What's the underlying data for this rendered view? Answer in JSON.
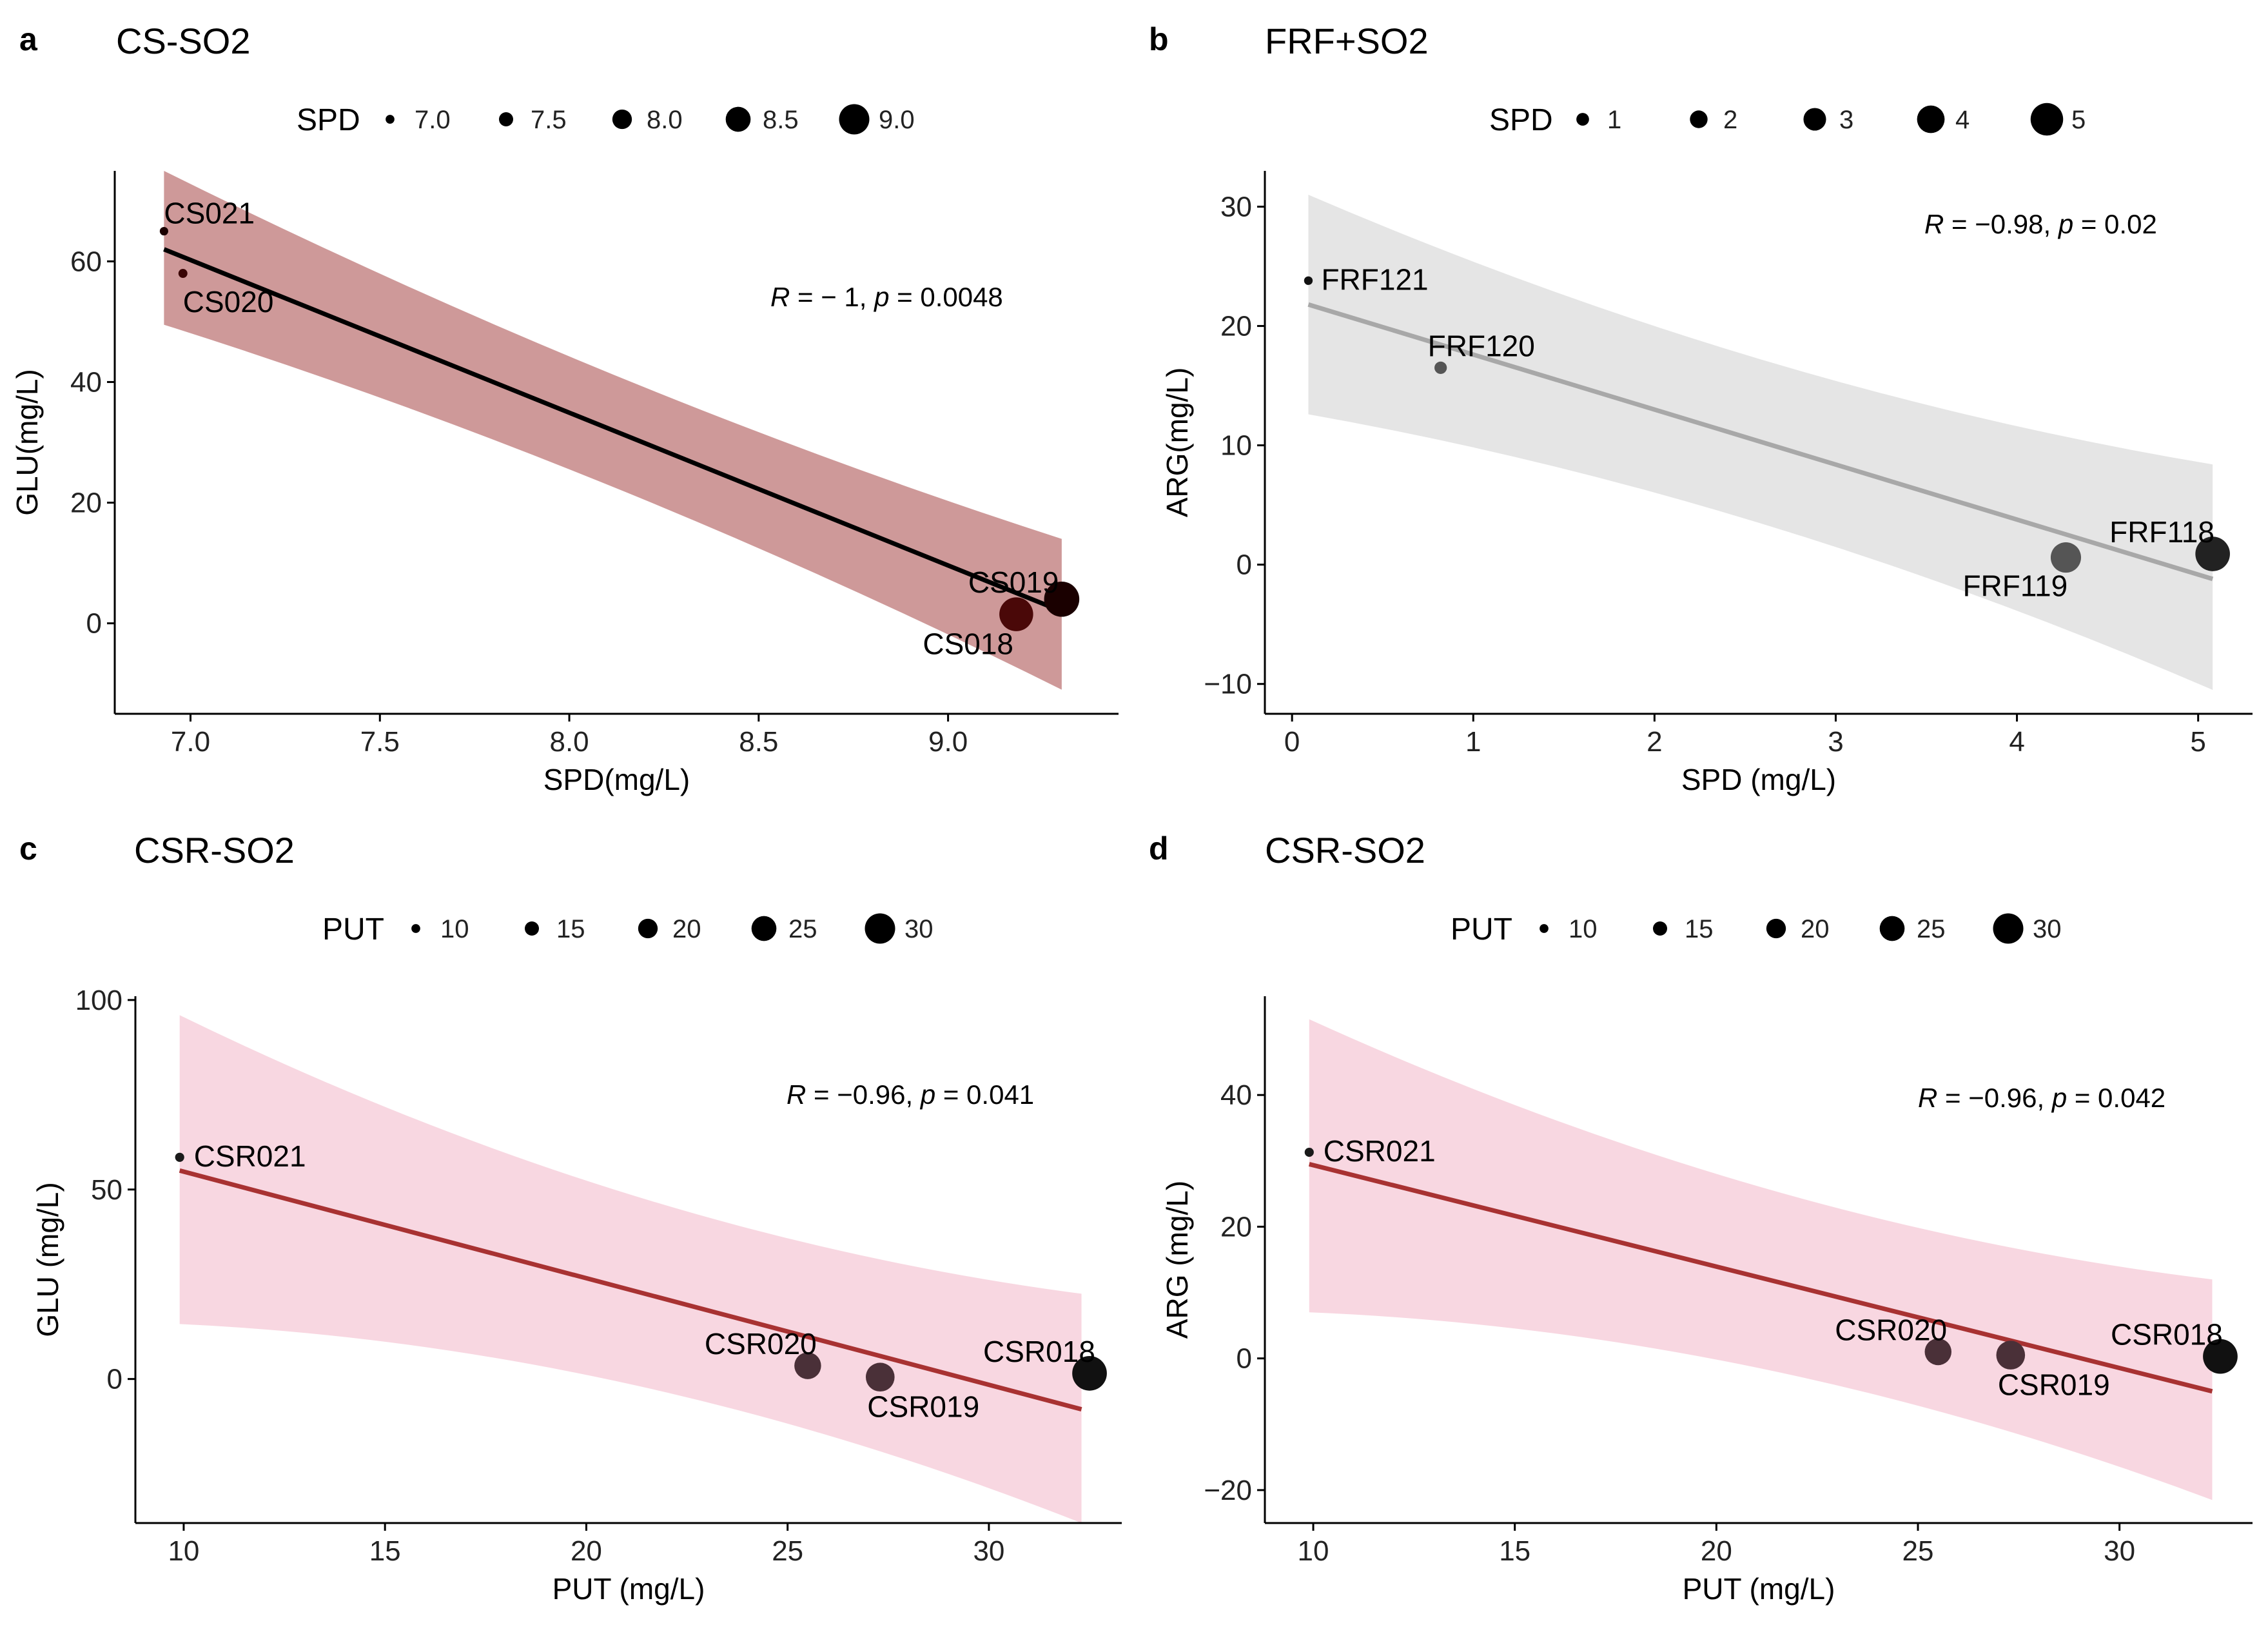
{
  "chart_data": [
    {
      "type": "scatter",
      "letter": "a",
      "title": "CS-SO2",
      "xlabel": "SPD(mg/L)",
      "ylabel": "GLU(mg/L)",
      "xlim": [
        6.8,
        9.45
      ],
      "ylim": [
        -15,
        75
      ],
      "xticks": [
        7.0,
        7.5,
        8.0,
        8.5,
        9.0
      ],
      "xtick_labels": [
        "7.0",
        "7.5",
        "8.0",
        "8.5",
        "9.0"
      ],
      "yticks": [
        0,
        20,
        40,
        60
      ],
      "ytick_labels": [
        "0",
        "20",
        "40",
        "60"
      ],
      "size_legend": {
        "title": "SPD",
        "values": [
          7.0,
          7.5,
          8.0,
          8.5,
          9.0
        ],
        "labels": [
          "7.0",
          "7.5",
          "8.0",
          "8.5",
          "9.0"
        ],
        "range": [
          6.9,
          9.3
        ]
      },
      "points": [
        {
          "label": "CS021",
          "x": 6.93,
          "y": 65,
          "size": 6.93,
          "color": "#1a0000"
        },
        {
          "label": "CS020",
          "x": 6.98,
          "y": 58,
          "size": 6.98,
          "color": "#3a0505"
        },
        {
          "label": "CS019",
          "x": 9.3,
          "y": 4,
          "size": 9.3,
          "color": "#1a0000"
        },
        {
          "label": "CS018",
          "x": 9.18,
          "y": 1.5,
          "size": 9.18,
          "color": "#4a0808"
        }
      ],
      "fit": {
        "x": [
          6.93,
          9.3
        ],
        "y": [
          62,
          2
        ],
        "band_upper": [
          75,
          14
        ],
        "band_lower": [
          49.5,
          -11
        ]
      },
      "line_color": "#000000",
      "band_color": "#b05a5a",
      "band_opacity": 0.62,
      "stat_R": "R",
      "stat_R_val": " = − 1, ",
      "stat_p": "p",
      "stat_p_val": " = 0.0048"
    },
    {
      "type": "scatter",
      "letter": "b",
      "title": "FRF+SO2",
      "xlabel": "SPD (mg/L)",
      "ylabel": "ARG(mg/L)",
      "xlim": [
        -0.15,
        5.3
      ],
      "ylim": [
        -12.5,
        33
      ],
      "xticks": [
        0,
        1,
        2,
        3,
        4,
        5
      ],
      "xtick_labels": [
        "0",
        "1",
        "2",
        "3",
        "4",
        "5"
      ],
      "yticks": [
        -10,
        0,
        10,
        20,
        30
      ],
      "ytick_labels": [
        "−10",
        "0",
        "10",
        "20",
        "30"
      ],
      "size_legend": {
        "title": "SPD",
        "values": [
          1,
          2,
          3,
          4,
          5
        ],
        "labels": [
          "1",
          "2",
          "3",
          "4",
          "5"
        ],
        "range": [
          0,
          5.2
        ]
      },
      "points": [
        {
          "label": "FRF121",
          "x": 0.09,
          "y": 23.8,
          "size": 0.09,
          "color": "#111111"
        },
        {
          "label": "FRF120",
          "x": 0.82,
          "y": 16.5,
          "size": 0.82,
          "color": "#555555"
        },
        {
          "label": "FRF119",
          "x": 4.27,
          "y": 0.6,
          "size": 4.27,
          "color": "#555555"
        },
        {
          "label": "FRF118",
          "x": 5.08,
          "y": 0.9,
          "size": 5.08,
          "color": "#222222"
        }
      ],
      "fit": {
        "x": [
          0.09,
          5.08
        ],
        "y": [
          21.8,
          -1.2
        ],
        "band_upper": [
          31,
          8.4
        ],
        "band_lower": [
          12.6,
          -10.5
        ]
      },
      "line_color": "#a8a8a8",
      "band_color": "#d0d0d0",
      "band_opacity": 0.55,
      "stat_R": "R",
      "stat_R_val": " = −0.98, ",
      "stat_p": "p",
      "stat_p_val": " = 0.02"
    },
    {
      "type": "scatter",
      "letter": "c",
      "title": "CSR-SO2",
      "xlabel": "PUT (mg/L)",
      "ylabel": "GLU (mg/L)",
      "xlim": [
        8.8,
        33.3
      ],
      "ylim": [
        -38,
        101
      ],
      "xticks": [
        10,
        15,
        20,
        25,
        30
      ],
      "xtick_labels": [
        "10",
        "15",
        "20",
        "25",
        "30"
      ],
      "yticks": [
        0,
        50,
        100
      ],
      "ytick_labels": [
        "0",
        "50",
        "100"
      ],
      "size_legend": {
        "title": "PUT",
        "values": [
          10,
          15,
          20,
          25,
          30
        ],
        "labels": [
          "10",
          "15",
          "20",
          "25",
          "30"
        ],
        "range": [
          9,
          33
        ]
      },
      "points": [
        {
          "label": "CSR021",
          "x": 9.9,
          "y": 58.5,
          "size": 9.9,
          "color": "#1a1a1a"
        },
        {
          "label": "CSR020",
          "x": 25.5,
          "y": 3.5,
          "size": 25.5,
          "color": "#4a3038"
        },
        {
          "label": "CSR019",
          "x": 27.3,
          "y": 0.5,
          "size": 27.3,
          "color": "#4a3038"
        },
        {
          "label": "CSR018",
          "x": 32.5,
          "y": 1.5,
          "size": 32.5,
          "color": "#111111"
        }
      ],
      "fit": {
        "x": [
          9.9,
          32.3
        ],
        "y": [
          55,
          -8
        ],
        "band_upper": [
          96,
          22.5
        ],
        "band_lower": [
          14.5,
          -38
        ]
      },
      "line_color": "#a83232",
      "band_color": "#f2b6c8",
      "band_opacity": 0.55,
      "stat_R": "R",
      "stat_R_val": " = −0.96, ",
      "stat_p": "p",
      "stat_p_val": " = 0.041"
    },
    {
      "type": "scatter",
      "letter": "d",
      "title": "CSR-SO2",
      "xlabel": "PUT (mg/L)",
      "ylabel": "ARG (mg/L)",
      "xlim": [
        8.8,
        33.3
      ],
      "ylim": [
        -25,
        55
      ],
      "xticks": [
        10,
        15,
        20,
        25,
        30
      ],
      "xtick_labels": [
        "10",
        "15",
        "20",
        "25",
        "30"
      ],
      "yticks": [
        -20,
        0,
        20,
        40
      ],
      "ytick_labels": [
        "−20",
        "0",
        "20",
        "40"
      ],
      "size_legend": {
        "title": "PUT",
        "values": [
          10,
          15,
          20,
          25,
          30
        ],
        "labels": [
          "10",
          "15",
          "20",
          "25",
          "30"
        ],
        "range": [
          9,
          33
        ]
      },
      "points": [
        {
          "label": "CSR021",
          "x": 9.9,
          "y": 31.3,
          "size": 9.9,
          "color": "#1a1a1a"
        },
        {
          "label": "CSR020",
          "x": 25.5,
          "y": 1,
          "size": 25.5,
          "color": "#4a3038"
        },
        {
          "label": "CSR019",
          "x": 27.3,
          "y": 0.5,
          "size": 27.3,
          "color": "#4a3038"
        },
        {
          "label": "CSR018",
          "x": 32.5,
          "y": 0.3,
          "size": 32.5,
          "color": "#111111"
        }
      ],
      "fit": {
        "x": [
          9.9,
          32.3
        ],
        "y": [
          29.5,
          -5
        ],
        "band_upper": [
          51.5,
          12
        ],
        "band_lower": [
          7,
          -21.5
        ]
      },
      "line_color": "#a83232",
      "band_color": "#f2b6c8",
      "band_opacity": 0.55,
      "stat_R": "R",
      "stat_R_val": " = −0.96, ",
      "stat_p": "p",
      "stat_p_val": " = 0.042"
    }
  ]
}
